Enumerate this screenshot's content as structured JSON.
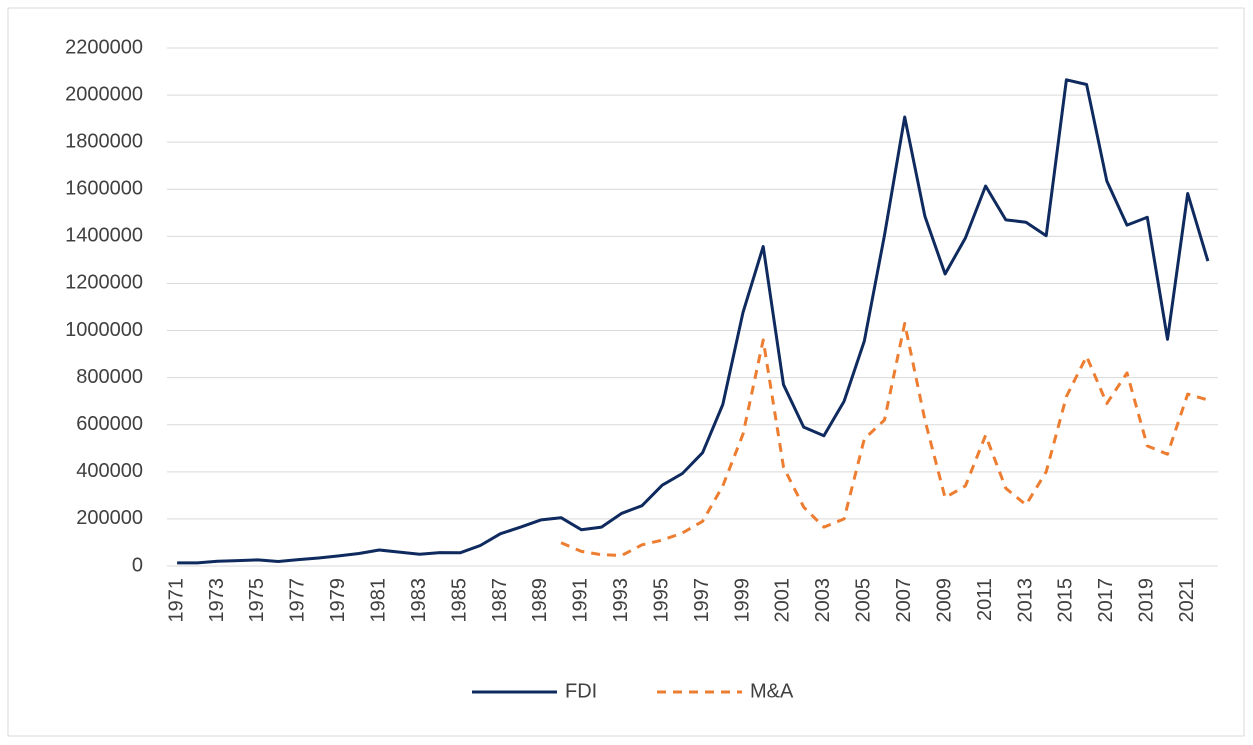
{
  "chart_data": {
    "type": "line",
    "categories": [
      "1971",
      null,
      "1973",
      null,
      "1975",
      null,
      "1977",
      null,
      "1979",
      null,
      "1981",
      null,
      "1983",
      null,
      "1985",
      null,
      "1987",
      null,
      "1989",
      null,
      "1991",
      null,
      "1993",
      null,
      "1995",
      null,
      "1997",
      null,
      "1999",
      null,
      "2001",
      null,
      "2003",
      null,
      "2005",
      null,
      "2007",
      null,
      "2009",
      null,
      "2011",
      null,
      "2013",
      null,
      "2015",
      null,
      "2017",
      null,
      "2019",
      null,
      "2021",
      null
    ],
    "series": [
      {
        "name": "FDI",
        "color": "#0f2a5e",
        "dashed": false,
        "values": [
          13000,
          13000,
          20000,
          23000,
          26000,
          19000,
          27000,
          34000,
          43000,
          53000,
          68000,
          59000,
          50000,
          57000,
          56000,
          87000,
          137000,
          165000,
          196000,
          205000,
          154000,
          165000,
          224000,
          256000,
          343000,
          393000,
          481000,
          686000,
          1077000,
          1357000,
          770000,
          590000,
          553000,
          700000,
          955000,
          1405000,
          1907000,
          1485000,
          1240000,
          1393000,
          1614000,
          1470000,
          1460000,
          1403000,
          2065000,
          2045000,
          1635000,
          1448000,
          1481000,
          963000,
          1582000,
          1295000
        ]
      },
      {
        "name": "M&A",
        "color": "#ed7d31",
        "dashed": true,
        "values": [
          null,
          null,
          null,
          null,
          null,
          null,
          null,
          null,
          null,
          null,
          null,
          null,
          null,
          null,
          null,
          null,
          null,
          null,
          null,
          99000,
          62000,
          48000,
          45000,
          90000,
          110000,
          140000,
          190000,
          340000,
          560000,
          960000,
          420000,
          250000,
          165000,
          200000,
          540000,
          620000,
          1030000,
          620000,
          290000,
          340000,
          555000,
          330000,
          260000,
          400000,
          720000,
          890000,
          690000,
          820000,
          510000,
          475000,
          730000,
          705000
        ]
      }
    ],
    "ylim": [
      0,
      2200000
    ],
    "yticks": [
      0,
      200000,
      400000,
      600000,
      800000,
      1000000,
      1200000,
      1400000,
      1600000,
      1800000,
      2000000,
      2200000
    ],
    "grid": true,
    "legend": "bottom"
  }
}
